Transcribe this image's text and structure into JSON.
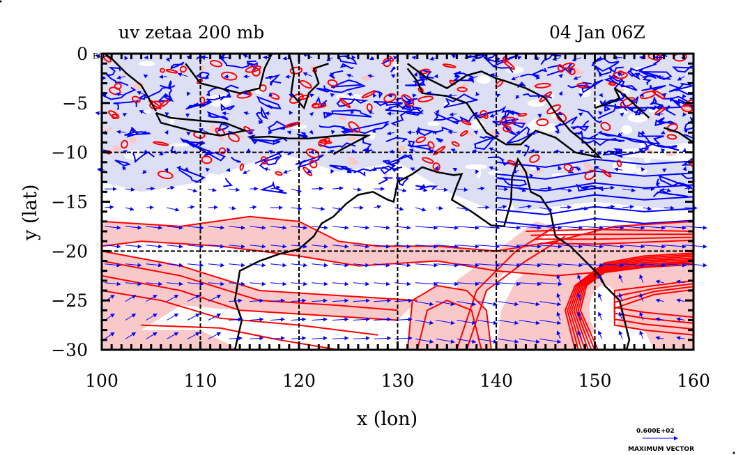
{
  "chart_data": {
    "type": "map",
    "title_left": "uv zetaa 200 mb",
    "title_right": "04 Jan 06Z",
    "xlabel": "x (lon)",
    "ylabel": "y (lat)",
    "xlim": [
      100,
      160
    ],
    "ylim": [
      -30,
      0
    ],
    "x_ticks": [
      100,
      110,
      120,
      130,
      140,
      150,
      160
    ],
    "x_tick_labels": [
      "100",
      "110",
      "120",
      "130",
      "140",
      "150",
      "160"
    ],
    "y_ticks": [
      0,
      -5,
      -10,
      -15,
      -20,
      -25,
      -30
    ],
    "y_tick_labels": [
      "0",
      "−5",
      "−10",
      "−15",
      "−20",
      "−25",
      "−30"
    ],
    "grid": {
      "dashed": true,
      "x": [
        110,
        120,
        130,
        140,
        150
      ],
      "y": [
        -10,
        -20
      ]
    },
    "fields": {
      "vectors": "uv wind at 200 mb",
      "contours": "absolute vorticity (zetaa)",
      "positive_contour_color": "#ff0000",
      "negative_contour_color": "#0000ff",
      "positive_shade_color": "#f9c8c8",
      "negative_shade_color": "#dde0f5",
      "vector_color": "#0000ff",
      "coastline_color": "#000000"
    },
    "corner_label": "EQ",
    "legend": {
      "vector_magnitude": "0.600E+02",
      "vector_label": "MAXIMUM VECTOR"
    },
    "shaded_regions": {
      "positive": [
        {
          "lon": [
            100,
            135
          ],
          "lat": [
            -26,
            -16
          ],
          "desc": "subtropical band west"
        },
        {
          "lon": [
            140,
            160
          ],
          "lat": [
            -28,
            -18
          ],
          "desc": "jet curve east"
        },
        {
          "lon": [
            131,
            139
          ],
          "lat": [
            -30,
            -22
          ],
          "desc": "trough south-central"
        }
      ],
      "negative": [
        {
          "lon": [
            100,
            160
          ],
          "lat": [
            -14,
            0
          ],
          "desc": "tropical belt"
        }
      ]
    }
  }
}
